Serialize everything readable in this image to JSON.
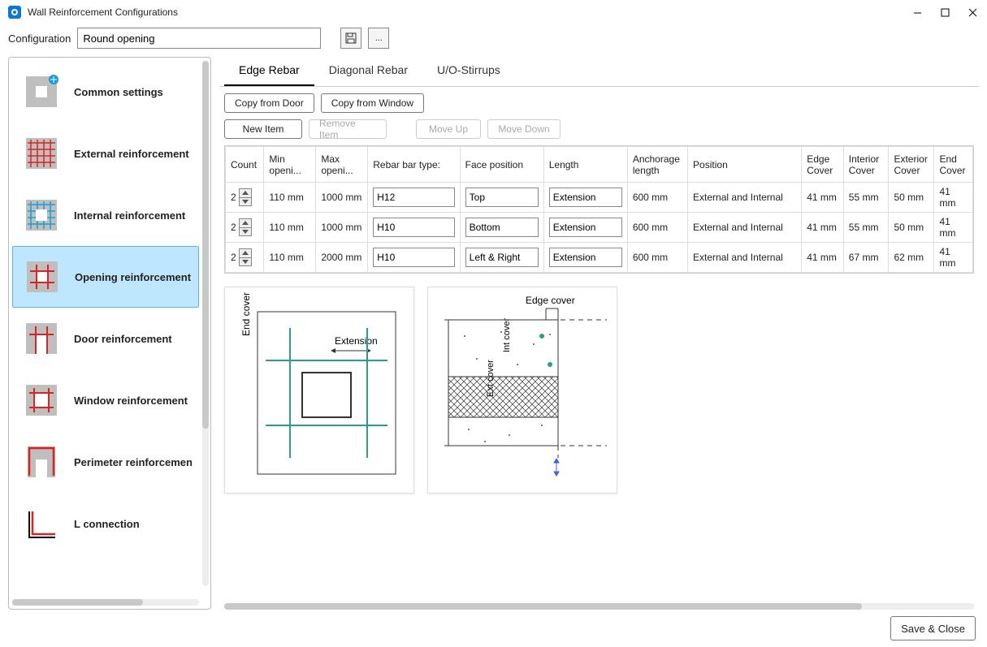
{
  "window": {
    "title": "Wall Reinforcement Configurations"
  },
  "config": {
    "label": "Configuration",
    "value": "Round opening",
    "save_tooltip": "Save",
    "more_label": "..."
  },
  "sidebar": {
    "selected_index": 3,
    "items": [
      {
        "label": "Common settings",
        "icon": "common"
      },
      {
        "label": "External reinforcement",
        "icon": "external"
      },
      {
        "label": "Internal reinforcement",
        "icon": "internal"
      },
      {
        "label": "Opening reinforcement",
        "icon": "opening"
      },
      {
        "label": "Door reinforcement",
        "icon": "door"
      },
      {
        "label": "Window reinforcement",
        "icon": "window"
      },
      {
        "label": "Perimeter reinforcemen",
        "icon": "perimeter"
      },
      {
        "label": "L connection",
        "icon": "lconn"
      }
    ]
  },
  "tabs": {
    "active_index": 0,
    "items": [
      {
        "label": "Edge Rebar"
      },
      {
        "label": "Diagonal Rebar"
      },
      {
        "label": "U/O-Stirrups"
      }
    ]
  },
  "toolbar": {
    "copy_door": "Copy from Door",
    "copy_window": "Copy from Window",
    "new_item": "New Item",
    "remove_item": "Remove Item",
    "move_up": "Move Up",
    "move_down": "Move Down"
  },
  "table": {
    "columns": [
      "Count",
      "Min openi...",
      "Max openi...",
      "Rebar bar type:",
      "Face position",
      "Length",
      "Anchorage length",
      "Position",
      "Edge Cover",
      "Interior Cover",
      "Exterior Cover",
      "End Cover"
    ],
    "rows": [
      {
        "count": "2",
        "min": "110 mm",
        "max": "1000 mm",
        "rebar": "H12",
        "face": "Top",
        "length": "Extension",
        "anchorage": "600 mm",
        "position": "External and Internal",
        "edge": "41 mm",
        "interior": "55 mm",
        "exterior": "50 mm",
        "end": "41 mm"
      },
      {
        "count": "2",
        "min": "110 mm",
        "max": "1000 mm",
        "rebar": "H10",
        "face": "Bottom",
        "length": "Extension",
        "anchorage": "600 mm",
        "position": "External and Internal",
        "edge": "41 mm",
        "interior": "55 mm",
        "exterior": "50 mm",
        "end": "41 mm"
      },
      {
        "count": "2",
        "min": "110 mm",
        "max": "2000 mm",
        "rebar": "H10",
        "face": "Left & Right",
        "length": "Extension",
        "anchorage": "600 mm",
        "position": "External and Internal",
        "edge": "41 mm",
        "interior": "67 mm",
        "exterior": "62 mm",
        "end": "41 mm"
      }
    ]
  },
  "diagrams": {
    "left": {
      "end_cover_label": "End cover",
      "extension_label": "Extension",
      "line_color": "#2a9d8f",
      "border_color": "#333"
    },
    "right": {
      "edge_cover_label": "Edge cover",
      "int_cover_label": "Int cover",
      "ext_cover_label": "Ext cover",
      "dot_color": "#2a9d8f",
      "hatch_color": "#333",
      "arrow_color": "#3a66d1"
    }
  },
  "footer": {
    "save_close": "Save & Close"
  },
  "colors": {
    "selection_bg": "#bfe6ff",
    "selection_border": "#5bb5e8",
    "red": "#d22",
    "blue": "#1e9bd7",
    "gray": "#9a9a9a"
  }
}
